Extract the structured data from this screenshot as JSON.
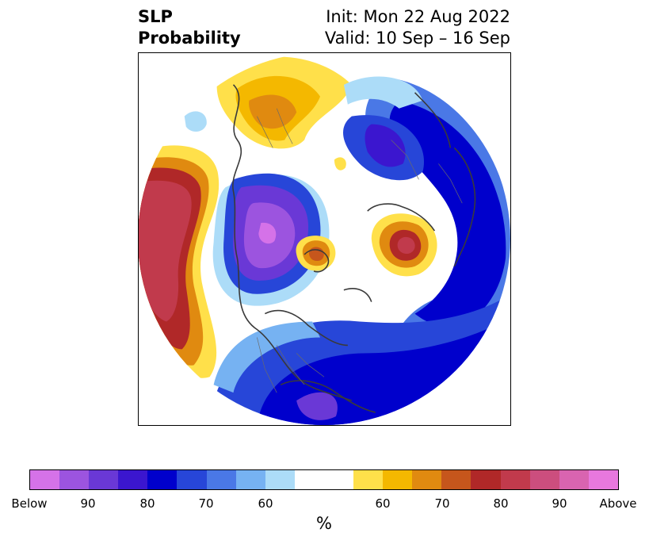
{
  "title": {
    "left_line1": "SLP",
    "left_line2": "Probability",
    "right_line1": "Init: Mon 22 Aug 2022",
    "right_line2": "Valid: 10 Sep – 16 Sep"
  },
  "colorbar": {
    "unit": "%",
    "ticks": [
      "Below",
      "90",
      "80",
      "70",
      "60",
      "60",
      "70",
      "80",
      "90",
      "Above"
    ],
    "colors": [
      "#d572e8",
      "#9c54df",
      "#6a38d6",
      "#3b16cf",
      "#0000cc",
      "#2746d8",
      "#4a78e6",
      "#76b2f2",
      "#acdcf8",
      "#ffffff",
      "#ffe04a",
      "#f4b800",
      "#e08a10",
      "#c6561c",
      "#b02828",
      "#c13a4c",
      "#cc4e7e",
      "#d964b0",
      "#e878de"
    ]
  },
  "map": {
    "projection": "north-polar-stereographic",
    "variable": "sea-level-pressure-probability"
  }
}
